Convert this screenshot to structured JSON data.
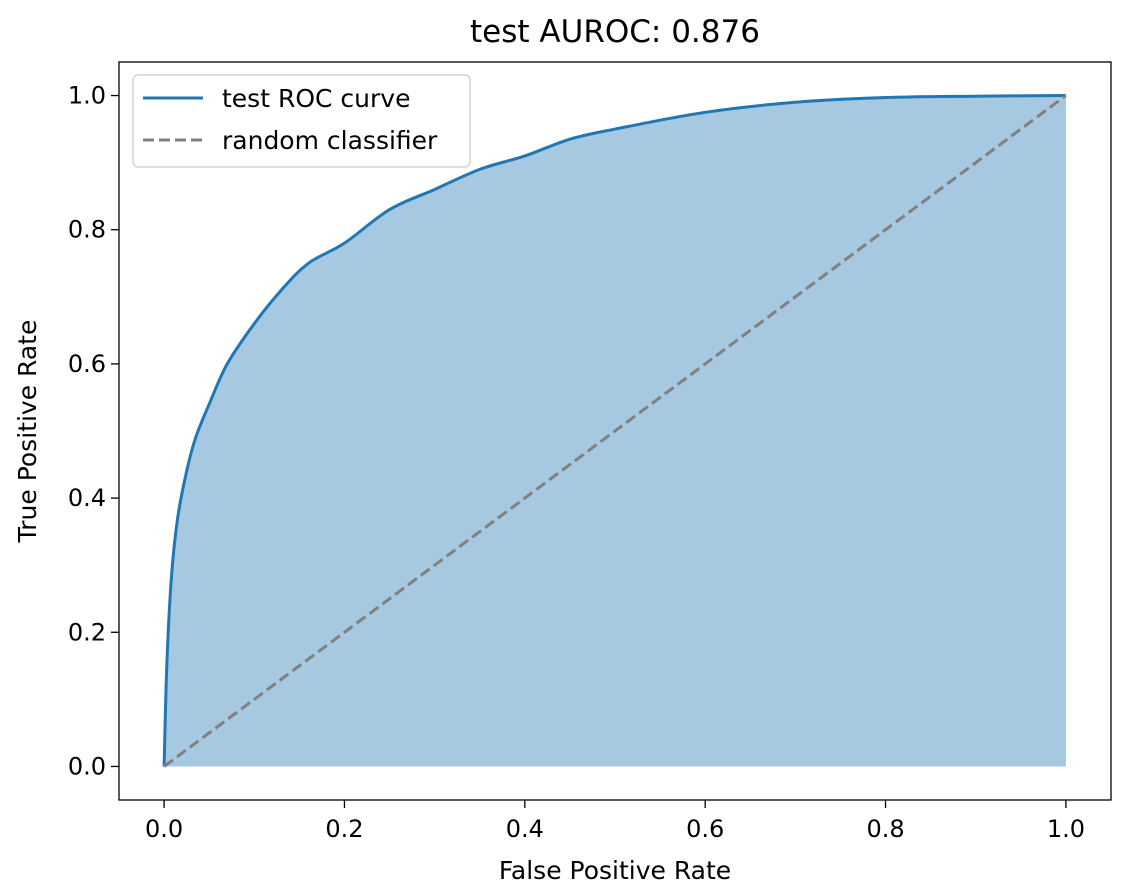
{
  "chart_data": {
    "type": "line",
    "title": "test AUROC: 0.876",
    "xlabel": "False Positive Rate",
    "ylabel": "True Positive Rate",
    "xlim": [
      -0.05,
      1.05
    ],
    "ylim": [
      -0.05,
      1.05
    ],
    "x_ticks": [
      0.0,
      0.2,
      0.4,
      0.6,
      0.8,
      1.0
    ],
    "y_ticks": [
      0.0,
      0.2,
      0.4,
      0.6,
      0.8,
      1.0
    ],
    "x_tick_labels": [
      "0.0",
      "0.2",
      "0.4",
      "0.6",
      "0.8",
      "1.0"
    ],
    "y_tick_labels": [
      "0.0",
      "0.2",
      "0.4",
      "0.6",
      "0.8",
      "1.0"
    ],
    "grid": false,
    "legend_position": "top-left",
    "series": [
      {
        "name": "test ROC curve",
        "style": "solid",
        "color": "#1f77b4",
        "fill_under": true,
        "fill_color": "#a6c8e1",
        "x": [
          0.0,
          0.003,
          0.008,
          0.015,
          0.025,
          0.035,
          0.05,
          0.07,
          0.1,
          0.13,
          0.16,
          0.2,
          0.25,
          0.3,
          0.35,
          0.4,
          0.45,
          0.5,
          0.6,
          0.7,
          0.8,
          0.9,
          1.0
        ],
        "y": [
          0.0,
          0.15,
          0.28,
          0.37,
          0.44,
          0.49,
          0.54,
          0.6,
          0.66,
          0.71,
          0.75,
          0.78,
          0.83,
          0.86,
          0.89,
          0.91,
          0.935,
          0.95,
          0.975,
          0.99,
          0.997,
          0.999,
          1.0
        ]
      },
      {
        "name": "random classifier",
        "style": "dashed",
        "color": "#808080",
        "x": [
          0.0,
          1.0
        ],
        "y": [
          0.0,
          1.0
        ]
      }
    ]
  }
}
